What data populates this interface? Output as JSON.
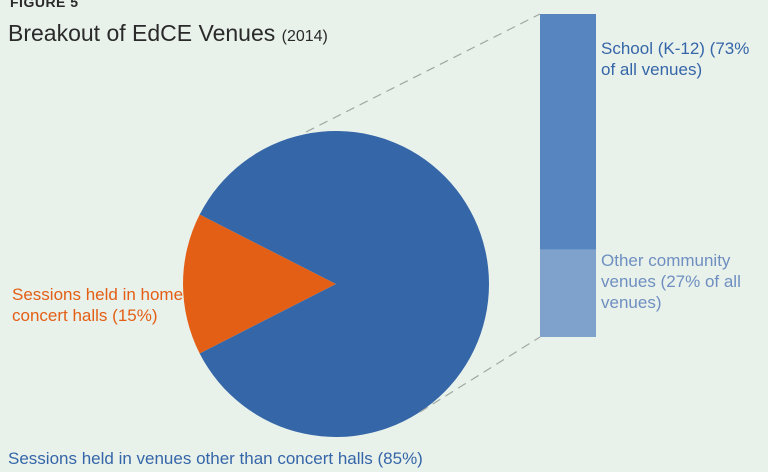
{
  "figure_label": "FIGURE 5",
  "title": "Breakout of EdCE Venues",
  "title_year": "(2014)",
  "chart_data": [
    {
      "type": "pie",
      "slices": [
        {
          "label": "Sessions held in venues other than concert halls (85%)",
          "value": 85,
          "color": "#3566a8"
        },
        {
          "label": "Sessions held in home concert halls (15%)",
          "value": 15,
          "color": "#e35f15"
        }
      ]
    },
    {
      "type": "bar",
      "stacked": true,
      "breakout_of": "Sessions held in venues other than concert halls (85%)",
      "segments": [
        {
          "label": "School (K-12) (73% of all venues)",
          "value": 73,
          "color": "#5785c0"
        },
        {
          "label": "Other community venues (27% of all venues)",
          "value": 27,
          "color": "#7ea2cc"
        }
      ]
    }
  ],
  "connector_color": "#a0a8a2"
}
